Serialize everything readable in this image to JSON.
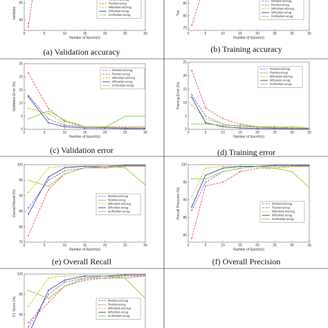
{
  "captions": {
    "a": "(a) Validation accuracy",
    "b": "(b) Training accuracy",
    "c": "(c) Validation error",
    "d": "(d) Training error",
    "e": "(e) Overall Recall",
    "f": "(f) Overall Precision"
  },
  "legend_entries": [
    "ResNet-w/oAug",
    "ResNet-wAug",
    "MResNet-w/oAug",
    "MResNet-wAug",
    "IncResNet-wAug"
  ],
  "series_styles": [
    {
      "name": "ResNet-w/oAug",
      "color": "#6a6ad8",
      "dash": "3,1.5"
    },
    {
      "name": "ResNet-wAug",
      "color": "#e05050",
      "dash": "3,1.5"
    },
    {
      "name": "MResNet-w/oAug",
      "color": "#c6c600",
      "dash": "3,1.5"
    },
    {
      "name": "MResNet-wAug",
      "color": "#3a3aa8",
      "dash": ""
    },
    {
      "name": "IncResNet-wAug",
      "color": "#88cc33",
      "dash": ""
    }
  ],
  "chart_data": [
    {
      "id": "a",
      "type": "line",
      "xlabel": "Number of Epoch(s)",
      "ylabel": "Validatio",
      "xticks": [
        0,
        5,
        10,
        15,
        20,
        25,
        30
      ],
      "yticks": [
        80,
        85
      ],
      "xlim": [
        0,
        30
      ],
      "ylim": [
        77,
        87
      ],
      "series": [
        {
          "name": "ResNet-w/oAug",
          "x": [
            1
          ],
          "y": [
            79
          ]
        },
        {
          "name": "ResNet-wAug",
          "x": [
            1,
            2
          ],
          "y": [
            78,
            86
          ]
        }
      ]
    },
    {
      "id": "b",
      "type": "line",
      "xlabel": "Number of Epoch(s)",
      "ylabel": "Trai",
      "xticks": [
        0,
        5,
        10,
        15,
        20,
        25,
        30,
        35
      ],
      "yticks": [
        75,
        80,
        85
      ],
      "xlim": [
        0,
        35
      ],
      "ylim": [
        74,
        88
      ],
      "series": [
        {
          "name": "ResNet-wAug",
          "x": [
            1,
            3.5
          ],
          "y": [
            76,
            87
          ]
        }
      ]
    },
    {
      "id": "c",
      "type": "line",
      "xlabel": "Number of Epoch(s)",
      "ylabel": "Validation Error (%)",
      "xticks": [
        0,
        5,
        10,
        15,
        20,
        25,
        30
      ],
      "yticks": [
        0,
        5,
        10,
        15,
        20,
        25
      ],
      "xlim": [
        0,
        30
      ],
      "ylim": [
        0,
        25
      ],
      "series": [
        {
          "name": "ResNet-w/oAug",
          "x": [
            1,
            6,
            10,
            15,
            20,
            25,
            30
          ],
          "y": [
            13,
            4,
            1.5,
            1,
            1,
            0.8,
            1
          ]
        },
        {
          "name": "ResNet-wAug",
          "x": [
            1,
            6,
            10,
            15,
            20,
            25,
            30
          ],
          "y": [
            21.5,
            8,
            3,
            1,
            0.8,
            0.5,
            0.5
          ]
        },
        {
          "name": "MResNet-w/oAug",
          "x": [
            1,
            6,
            10,
            15,
            20,
            25,
            30
          ],
          "y": [
            8,
            6,
            2,
            1,
            1,
            1,
            1
          ]
        },
        {
          "name": "MResNet-wAug",
          "x": [
            1,
            6,
            10,
            15,
            20,
            25,
            30
          ],
          "y": [
            12.5,
            2.5,
            1,
            0.5,
            0.5,
            0.3,
            0.3
          ]
        },
        {
          "name": "IncResNet-wAug",
          "x": [
            1,
            6,
            10,
            15,
            20,
            25,
            30
          ],
          "y": [
            4,
            7,
            3.5,
            1,
            0.8,
            5,
            5
          ]
        }
      ]
    },
    {
      "id": "d",
      "type": "line",
      "xlabel": "Number of Epoch(s)",
      "ylabel": "Training Error (%)",
      "xticks": [
        0,
        5,
        10,
        15,
        20,
        25,
        30,
        35
      ],
      "yticks": [
        0,
        5,
        10,
        15,
        20,
        25
      ],
      "xlim": [
        0,
        35
      ],
      "ylim": [
        0,
        25
      ],
      "series": [
        {
          "name": "ResNet-w/oAug",
          "x": [
            1,
            5,
            10,
            15,
            20,
            25,
            30,
            35
          ],
          "y": [
            13,
            5,
            2,
            1,
            0.8,
            0.5,
            0.5,
            0.3
          ]
        },
        {
          "name": "ResNet-wAug",
          "x": [
            1,
            5,
            10,
            15,
            20,
            25,
            30,
            35
          ],
          "y": [
            22,
            8,
            4,
            2,
            1,
            1,
            0.5,
            0.5
          ]
        },
        {
          "name": "MResNet-w/oAug",
          "x": [
            1,
            5,
            10,
            15,
            20,
            25,
            30,
            35
          ],
          "y": [
            9,
            4,
            2,
            1,
            1,
            0.5,
            0.5,
            0.3
          ]
        },
        {
          "name": "MResNet-wAug",
          "x": [
            1,
            5,
            10,
            15,
            20,
            25,
            30,
            35
          ],
          "y": [
            12,
            2.5,
            1,
            0.5,
            0.3,
            0.3,
            0.2,
            0.2
          ]
        },
        {
          "name": "IncResNet-wAug",
          "x": [
            1,
            5,
            10,
            15,
            20,
            25,
            30,
            35
          ],
          "y": [
            2,
            2,
            1.5,
            1.5,
            1,
            0.8,
            1,
            0.5
          ]
        }
      ]
    },
    {
      "id": "e",
      "type": "line",
      "xlabel": "Number of Epoch(s)",
      "ylabel": "Overall Recall (%)",
      "xticks": [
        0,
        5,
        10,
        15,
        20,
        25,
        30
      ],
      "yticks": [
        75,
        80,
        85,
        90,
        95,
        100
      ],
      "xlim": [
        0,
        30
      ],
      "ylim": [
        75,
        100
      ],
      "series": [
        {
          "name": "ResNet-w/oAug",
          "x": [
            1,
            6,
            10,
            15,
            20,
            25,
            30
          ],
          "y": [
            86,
            95,
            98,
            99,
            99,
            99.5,
            99.5
          ]
        },
        {
          "name": "ResNet-wAug",
          "x": [
            1,
            6,
            10,
            15,
            20,
            25,
            30
          ],
          "y": [
            77,
            92,
            97,
            99,
            99,
            99.5,
            99.5
          ]
        },
        {
          "name": "MResNet-w/oAug",
          "x": [
            1,
            6,
            10,
            15,
            20,
            25,
            30
          ],
          "y": [
            91,
            99,
            99.5,
            99.5,
            99.5,
            99.5,
            99.5
          ]
        },
        {
          "name": "MResNet-wAug",
          "x": [
            1,
            6,
            10,
            15,
            20,
            25,
            30
          ],
          "y": [
            84,
            96,
            99,
            99.5,
            99.5,
            99.8,
            99.8
          ]
        },
        {
          "name": "IncResNet-wAug",
          "x": [
            1,
            6,
            10,
            15,
            20,
            25,
            30
          ],
          "y": [
            95,
            93,
            97,
            99,
            99.5,
            99,
            93.5
          ]
        }
      ]
    },
    {
      "id": "f",
      "type": "line",
      "xlabel": "Number of Epoch(s)",
      "ylabel": "Overall Precision (%)",
      "xticks": [
        0,
        5,
        10,
        15,
        20,
        25,
        30,
        35
      ],
      "yticks": [
        80,
        85,
        90,
        95,
        100
      ],
      "xlim": [
        0,
        35
      ],
      "ylim": [
        78,
        100
      ],
      "series": [
        {
          "name": "ResNet-w/oAug",
          "x": [
            1,
            5,
            10,
            15,
            20,
            25,
            30,
            35
          ],
          "y": [
            87,
            95,
            98,
            99,
            99.5,
            99.5,
            99.5,
            99.8
          ]
        },
        {
          "name": "ResNet-wAug",
          "x": [
            1,
            5,
            10,
            15,
            20,
            25,
            30,
            35
          ],
          "y": [
            79,
            94,
            95,
            98,
            99,
            99,
            99.5,
            99.5
          ]
        },
        {
          "name": "MResNet-w/oAug",
          "x": [
            1,
            5,
            10,
            15,
            20,
            25,
            30,
            35
          ],
          "y": [
            91,
            99,
            99.5,
            99.5,
            99.5,
            99.5,
            99.5,
            99.5
          ]
        },
        {
          "name": "MResNet-wAug",
          "x": [
            1,
            5,
            10,
            15,
            20,
            25,
            30,
            35
          ],
          "y": [
            88,
            97,
            99,
            99.5,
            99.5,
            99.8,
            99.8,
            99.8
          ]
        },
        {
          "name": "IncResNet-wAug",
          "x": [
            1,
            5,
            10,
            15,
            20,
            25,
            30,
            35
          ],
          "y": [
            96,
            96,
            98,
            99,
            99.5,
            99,
            98,
            93.5
          ]
        }
      ]
    },
    {
      "id": "g",
      "type": "line",
      "xlabel": "",
      "ylabel": "F1 Score (%)",
      "xticks": [],
      "yticks": [
        90,
        95,
        100
      ],
      "xlim": [
        0,
        30
      ],
      "ylim": [
        84,
        100
      ],
      "series": [
        {
          "name": "ResNet-w/oAug",
          "x": [
            1,
            6,
            10,
            15,
            20,
            25,
            30
          ],
          "y": [
            87,
            95,
            98,
            99,
            99,
            99.5,
            99.5
          ]
        },
        {
          "name": "ResNet-wAug",
          "x": [
            1,
            6,
            10,
            15,
            20,
            25,
            30
          ],
          "y": [
            88,
            93,
            97,
            98.5,
            99,
            99,
            99.5
          ]
        },
        {
          "name": "MResNet-w/oAug",
          "x": [
            1,
            6,
            10,
            15,
            20,
            25,
            30
          ],
          "y": [
            92,
            99,
            99.5,
            99.5,
            99.5,
            99.5,
            99.5
          ]
        },
        {
          "name": "MResNet-wAug",
          "x": [
            1,
            6,
            10,
            15,
            20,
            25,
            30
          ],
          "y": [
            85,
            96,
            98.5,
            99.5,
            99.5,
            99.8,
            99.8
          ]
        },
        {
          "name": "IncResNet-wAug",
          "x": [
            1,
            6,
            10,
            15,
            20,
            25,
            30
          ],
          "y": [
            96,
            94,
            97,
            99,
            99.5,
            99,
            94
          ]
        }
      ]
    }
  ]
}
